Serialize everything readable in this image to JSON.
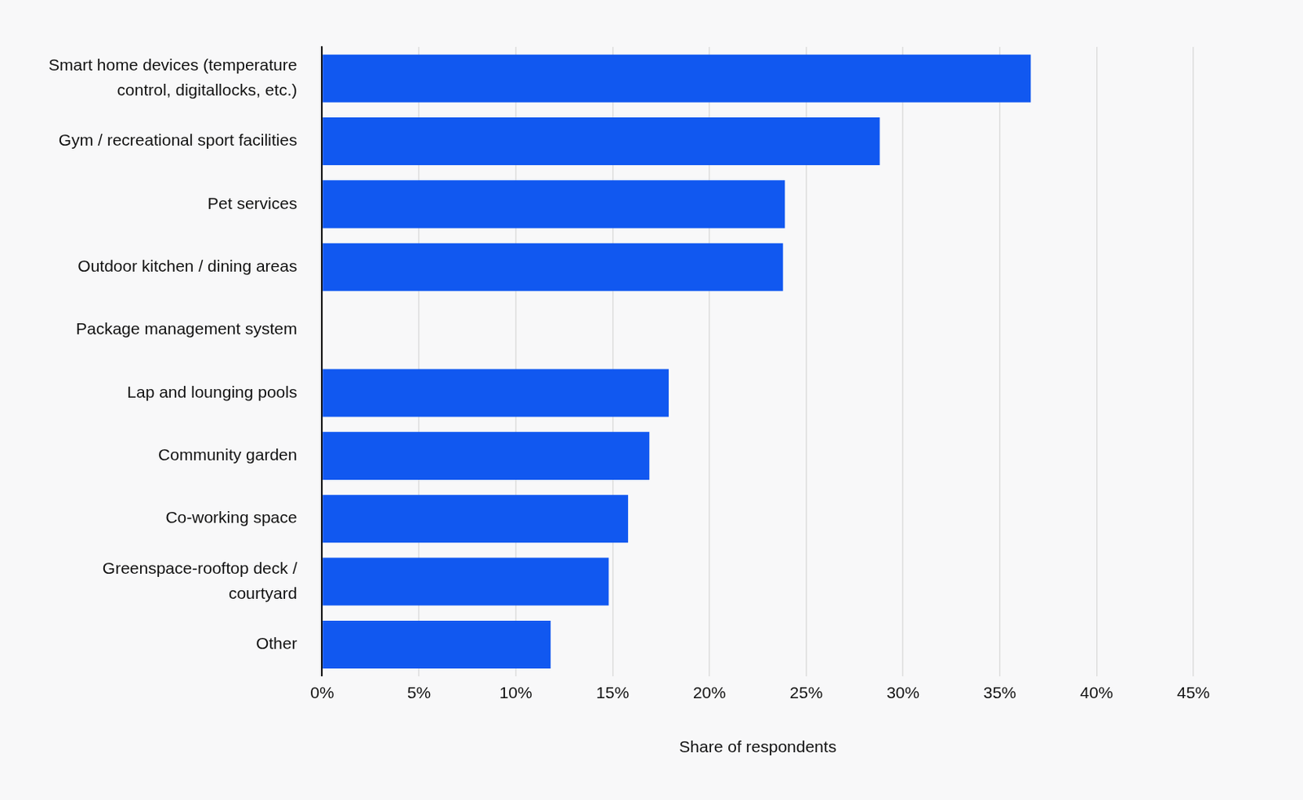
{
  "chart_data": {
    "type": "bar",
    "orientation": "horizontal",
    "categories": [
      [
        "Smart home devices (temperature",
        "control, digitallocks, etc.)"
      ],
      "Gym / recreational sport facilities",
      "Pet services",
      "Outdoor kitchen / dining areas",
      "Package management system",
      "Lap and lounging pools",
      "Community garden",
      "Co-working space",
      [
        "Greenspace-rooftop deck /",
        "courtyard"
      ],
      "Other"
    ],
    "values": [
      36.6,
      28.8,
      23.9,
      23.8,
      null,
      17.9,
      16.9,
      15.8,
      14.8,
      11.8
    ],
    "color": "#1158f0",
    "x_label": "Share of respondents",
    "xlim": [
      0,
      45
    ],
    "xticks": [
      {
        "value": 0,
        "label": "0%"
      },
      {
        "value": 5,
        "label": "5%"
      },
      {
        "value": 10,
        "label": "10%"
      },
      {
        "value": 15,
        "label": "15%"
      },
      {
        "value": 20,
        "label": "20%"
      },
      {
        "value": 25,
        "label": "25%"
      },
      {
        "value": 30,
        "label": "30%"
      },
      {
        "value": 35,
        "label": "35%"
      },
      {
        "value": 40,
        "label": "40%"
      },
      {
        "value": 45,
        "label": "45%"
      }
    ],
    "grid": true
  }
}
